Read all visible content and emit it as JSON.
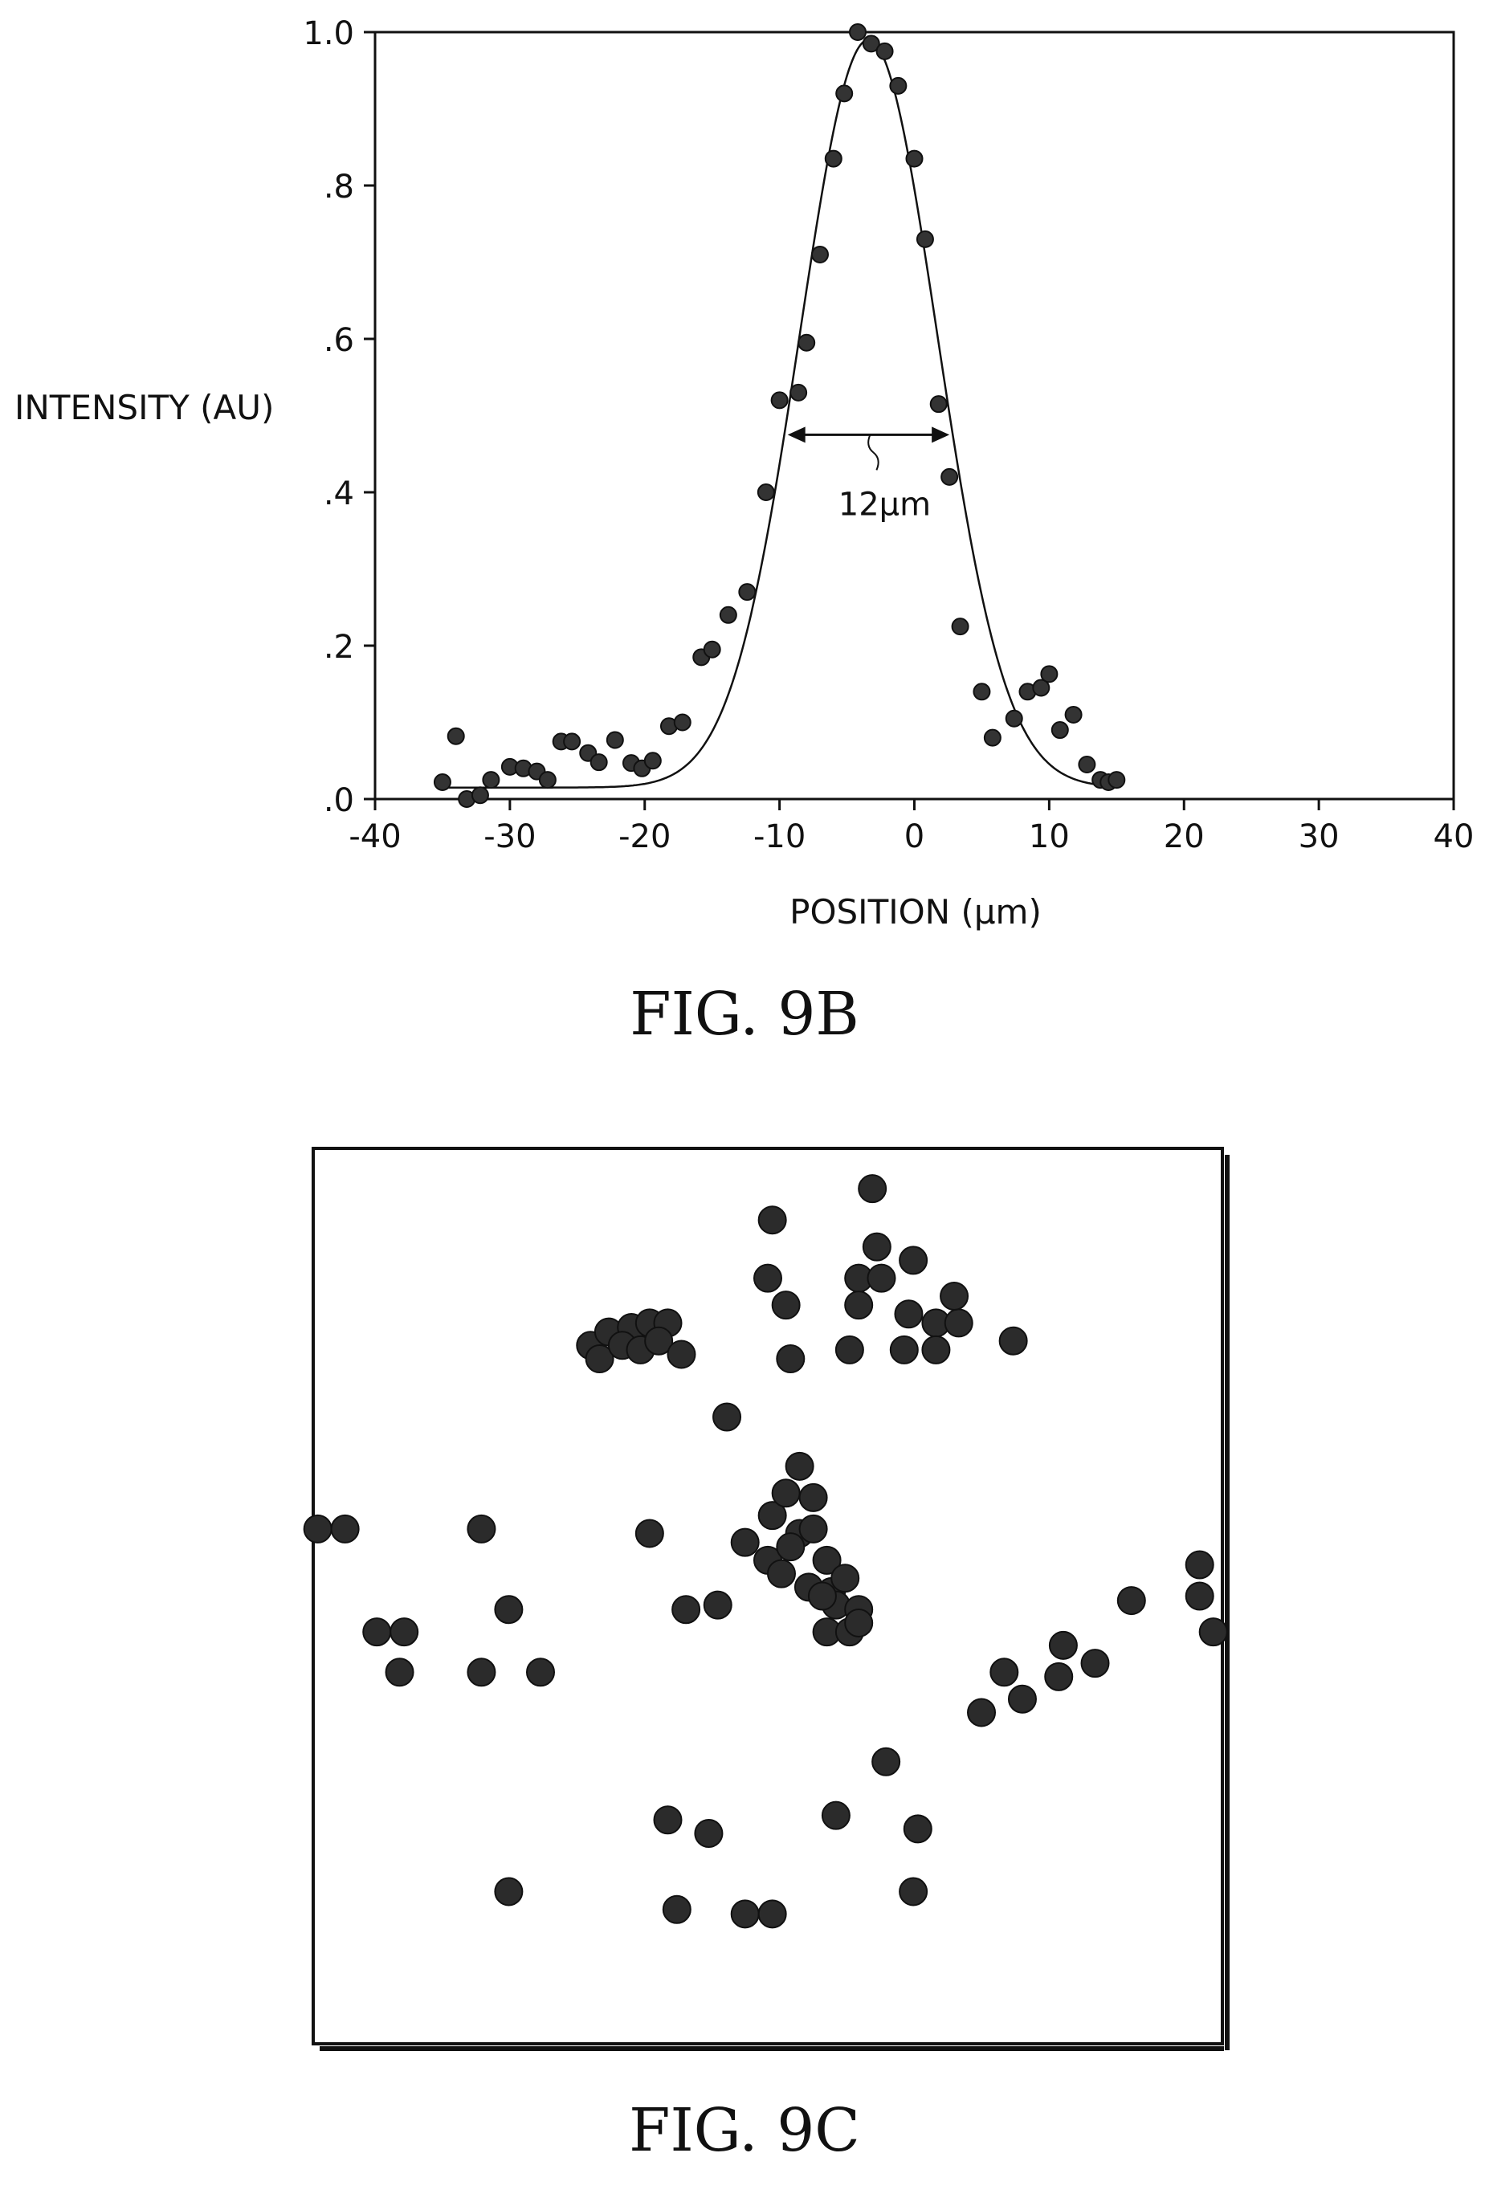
{
  "chart_data": [
    {
      "type": "scatter",
      "figure_label": "FIG. 9B",
      "title": "",
      "xlabel": "POSITION (μm)",
      "ylabel": "INTENSITY (AU)",
      "xlim": [
        -40,
        40
      ],
      "ylim": [
        0,
        1.0
      ],
      "x_ticks": [
        -40,
        -30,
        -20,
        -10,
        0,
        10,
        20,
        30,
        40
      ],
      "x_tick_labels": [
        "-40",
        "-30",
        "-20",
        "-10",
        "0",
        "10",
        "20",
        "30",
        "40"
      ],
      "y_ticks": [
        0,
        0.2,
        0.4,
        0.6,
        0.8,
        1.0
      ],
      "y_tick_labels": [
        ".0",
        ".2",
        ".4",
        ".6",
        ".8",
        "1.0"
      ],
      "grid": false,
      "series": [
        {
          "kind": "points",
          "x": [
            -35.0,
            -34.0,
            -33.2,
            -32.2,
            -31.4,
            -30.0,
            -29.0,
            -28.0,
            -27.2,
            -26.2,
            -25.4,
            -24.2,
            -23.4,
            -22.2,
            -21.0,
            -20.2,
            -19.4,
            -18.2,
            -17.2,
            -15.8,
            -15.0,
            -13.8,
            -12.4,
            -11.0,
            -10.0,
            -8.6,
            -8.0,
            -7.0,
            -6.0,
            -5.2,
            -4.2,
            -3.2,
            -2.2,
            -1.2,
            0.0,
            0.8,
            1.8,
            2.6,
            3.4,
            5.0,
            5.8,
            7.4,
            8.4,
            9.4,
            10.0,
            10.8,
            11.8,
            12.8,
            13.8,
            14.4,
            15.0
          ],
          "y": [
            0.022,
            0.082,
            0.0,
            0.005,
            0.025,
            0.042,
            0.04,
            0.036,
            0.025,
            0.075,
            0.075,
            0.06,
            0.048,
            0.077,
            0.047,
            0.04,
            0.05,
            0.095,
            0.1,
            0.185,
            0.195,
            0.24,
            0.27,
            0.4,
            0.52,
            0.53,
            0.595,
            0.71,
            0.835,
            0.92,
            1.0,
            0.985,
            0.975,
            0.93,
            0.835,
            0.73,
            0.515,
            0.42,
            0.225,
            0.14,
            0.08,
            0.105,
            0.14,
            0.145,
            0.163,
            0.09,
            0.11,
            0.045,
            0.025,
            0.022,
            0.025
          ]
        },
        {
          "kind": "gaussian_fit",
          "center": -3.4,
          "fwhm": 12,
          "amplitude": 0.99,
          "baseline": 0.015,
          "x_range": [
            -35,
            15
          ]
        }
      ],
      "annotations": [
        {
          "text": "12μm",
          "from_x": -9.4,
          "to_x": 2.6,
          "y": 0.475
        }
      ]
    },
    {
      "type": "scatter",
      "figure_label": "FIG. 9C",
      "title": "",
      "xlabel": "",
      "ylabel": "",
      "xlim": [
        0,
        100
      ],
      "ylim": [
        0,
        100
      ],
      "grid": false,
      "points": [
        [
          50.5,
          8.0
        ],
        [
          50.0,
          14.5
        ],
        [
          52.0,
          17.5
        ],
        [
          61.5,
          4.5
        ],
        [
          52.5,
          23.5
        ],
        [
          77.0,
          21.5
        ],
        [
          62.0,
          11.0
        ],
        [
          60.0,
          14.5
        ],
        [
          62.5,
          14.5
        ],
        [
          60.0,
          17.5
        ],
        [
          59.0,
          22.5
        ],
        [
          66.0,
          12.5
        ],
        [
          65.5,
          18.5
        ],
        [
          68.5,
          19.5
        ],
        [
          71.0,
          19.5
        ],
        [
          65.0,
          22.5
        ],
        [
          68.5,
          22.5
        ],
        [
          70.5,
          16.5
        ],
        [
          30.5,
          22.0
        ],
        [
          32.5,
          20.5
        ],
        [
          35.0,
          20.0
        ],
        [
          37.0,
          19.5
        ],
        [
          39.0,
          19.5
        ],
        [
          31.5,
          23.5
        ],
        [
          34.0,
          22.0
        ],
        [
          36.0,
          22.5
        ],
        [
          38.0,
          21.5
        ],
        [
          40.5,
          23.0
        ],
        [
          45.5,
          30.0
        ],
        [
          53.5,
          35.5
        ],
        [
          0.5,
          42.5
        ],
        [
          3.5,
          42.5
        ],
        [
          18.5,
          42.5
        ],
        [
          37.0,
          43.0
        ],
        [
          47.5,
          44.0
        ],
        [
          50.5,
          41.0
        ],
        [
          52.0,
          38.5
        ],
        [
          53.5,
          43.0
        ],
        [
          55.0,
          39.0
        ],
        [
          50.0,
          46.0
        ],
        [
          51.5,
          47.5
        ],
        [
          52.5,
          44.5
        ],
        [
          55.0,
          42.5
        ],
        [
          54.5,
          49.0
        ],
        [
          56.5,
          46.0
        ],
        [
          57.0,
          49.5
        ],
        [
          57.5,
          51.0
        ],
        [
          58.5,
          48.0
        ],
        [
          56.0,
          50.0
        ],
        [
          56.5,
          54.0
        ],
        [
          59.0,
          54.0
        ],
        [
          60.0,
          51.5
        ],
        [
          60.0,
          53.0
        ],
        [
          21.5,
          51.5
        ],
        [
          44.5,
          51.0
        ],
        [
          41.0,
          51.5
        ],
        [
          7.0,
          54.0
        ],
        [
          10.0,
          54.0
        ],
        [
          9.5,
          58.5
        ],
        [
          18.5,
          58.5
        ],
        [
          25.0,
          58.5
        ],
        [
          82.5,
          55.5
        ],
        [
          86.0,
          57.5
        ],
        [
          90.0,
          50.5
        ],
        [
          97.5,
          46.5
        ],
        [
          97.5,
          50.0
        ],
        [
          99.0,
          54.0
        ],
        [
          76.0,
          58.5
        ],
        [
          82.0,
          59.0
        ],
        [
          73.5,
          63.0
        ],
        [
          78.0,
          61.5
        ],
        [
          63.0,
          68.5
        ],
        [
          39.0,
          75.0
        ],
        [
          57.5,
          74.5
        ],
        [
          43.5,
          76.5
        ],
        [
          66.5,
          76.0
        ],
        [
          21.5,
          83.0
        ],
        [
          40.0,
          85.0
        ],
        [
          47.5,
          85.5
        ],
        [
          50.5,
          85.5
        ],
        [
          66.0,
          83.0
        ]
      ]
    }
  ]
}
